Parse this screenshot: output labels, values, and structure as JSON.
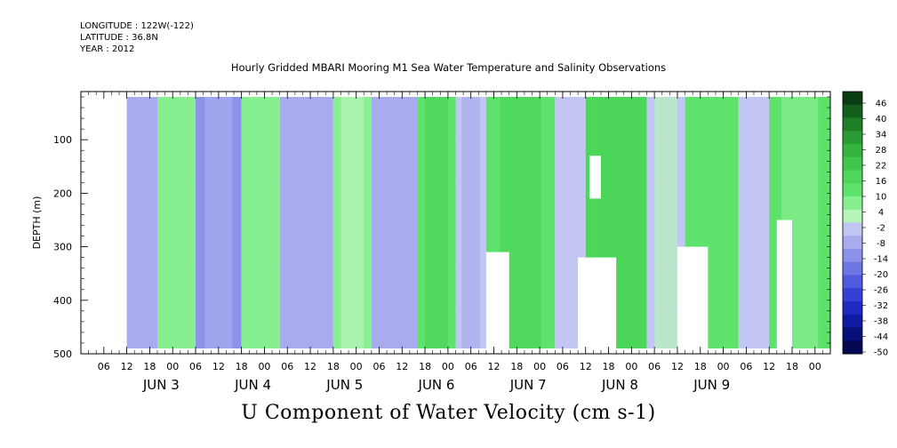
{
  "header": {
    "longitude": "LONGITUDE : 122W(-122)",
    "latitude": "LATITUDE : 36.8N",
    "year": "YEAR : 2012"
  },
  "chart_data": {
    "type": "heatmap",
    "title": "Hourly Gridded MBARI Mooring M1 Sea Water Temperature and Salinity Observations",
    "caption": "U Component of Water Velocity (cm s-1)",
    "ylabel": "DEPTH (m)",
    "y_range": [
      500,
      10
    ],
    "y_ticks": [
      100,
      200,
      300,
      400,
      500
    ],
    "x_range_hours": [
      "JUN 2 00:00",
      "JUN 10 04:00"
    ],
    "x_tick_labels": [
      "06",
      "12",
      "18",
      "00",
      "06",
      "12",
      "18",
      "00",
      "06",
      "12",
      "18",
      "00",
      "06",
      "12",
      "18",
      "00",
      "06",
      "12",
      "18",
      "00",
      "06",
      "12",
      "18",
      "00",
      "06",
      "12",
      "18",
      "00",
      "06",
      "12",
      "18",
      "00"
    ],
    "x_day_labels": [
      "JUN  3",
      "JUN  4",
      "JUN  5",
      "JUN  6",
      "JUN  7",
      "JUN  8",
      "JUN  9"
    ],
    "colorbar": {
      "labels": [
        "46",
        "40",
        "34",
        "28",
        "22",
        "16",
        "10",
        "4",
        "-2",
        "-8",
        "-14",
        "-20",
        "-26",
        "-32",
        "-38",
        "-44",
        "-50"
      ],
      "colors": [
        "#0a3d12",
        "#145f1c",
        "#1f7f28",
        "#2a9a34",
        "#35b440",
        "#3fc84c",
        "#4cd65a",
        "#5ee26c",
        "#86ef90",
        "#b6f5ba",
        "#c3c6f2",
        "#a8acee",
        "#8c92ea",
        "#6e76e4",
        "#4f5ade",
        "#3541d4",
        "#1f2ac2",
        "#101aa0",
        "#080f78",
        "#030850"
      ]
    },
    "description_of_field": "Alternating bands of westward (blue) and eastward (green) velocity; green dominates JUN 6-9; white = missing data",
    "bands": [
      {
        "start_hour": 12,
        "end_hour": 20,
        "u": -12
      },
      {
        "start_hour": 20,
        "end_hour": 30,
        "u": 4
      },
      {
        "start_hour": 30,
        "end_hour": 42,
        "u": -18
      },
      {
        "start_hour": 42,
        "end_hour": 52,
        "u": 6
      },
      {
        "start_hour": 52,
        "end_hour": 66,
        "u": -16
      },
      {
        "start_hour": 66,
        "end_hour": 76,
        "u": 2
      },
      {
        "start_hour": 76,
        "end_hour": 88,
        "u": -14
      },
      {
        "start_hour": 88,
        "end_hour": 98,
        "u": 10
      },
      {
        "start_hour": 98,
        "end_hour": 106,
        "u": -10
      },
      {
        "start_hour": 106,
        "end_hour": 124,
        "u": 12
      },
      {
        "start_hour": 124,
        "end_hour": 132,
        "u": -6
      },
      {
        "start_hour": 132,
        "end_hour": 148,
        "u": 14
      },
      {
        "start_hour": 148,
        "end_hour": 158,
        "u": -8
      },
      {
        "start_hour": 158,
        "end_hour": 172,
        "u": 12
      },
      {
        "start_hour": 172,
        "end_hour": 180,
        "u": -10
      },
      {
        "start_hour": 180,
        "end_hour": 196,
        "u": 10
      }
    ]
  }
}
